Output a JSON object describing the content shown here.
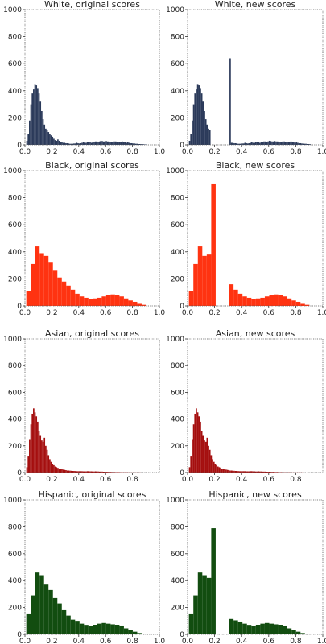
{
  "colors": {
    "White": "#2b3a5a",
    "Black": "#ff3311",
    "Asian": "#a50f0f",
    "Hispanic": "#124d10"
  },
  "chart_data": [
    {
      "type": "bar",
      "title": "White, original scores",
      "group": "White",
      "xlim": [
        0,
        1
      ],
      "ylim": [
        0,
        1000
      ],
      "xticks": [
        "0.0",
        "0.2",
        "0.4",
        "0.6",
        "0.8",
        "1.0"
      ],
      "yticks": [
        "0",
        "200",
        "400",
        "600",
        "800",
        "1000"
      ],
      "bin_width": 0.01,
      "x_start": 0.01,
      "values": [
        30,
        80,
        180,
        300,
        380,
        410,
        450,
        440,
        420,
        380,
        320,
        250,
        190,
        150,
        120,
        110,
        95,
        80,
        70,
        60,
        45,
        35,
        30,
        40,
        30,
        20,
        18,
        15,
        15,
        12,
        12,
        10,
        8,
        8,
        8,
        10,
        10,
        15,
        12,
        10,
        12,
        15,
        18,
        15,
        15,
        20,
        20,
        18,
        15,
        20,
        20,
        25,
        25,
        22,
        25,
        30,
        28,
        25,
        25,
        28,
        25,
        25,
        20,
        22,
        20,
        25,
        25,
        22,
        22,
        20,
        20,
        25,
        20,
        18,
        15,
        18,
        15,
        12,
        12,
        10,
        10,
        8,
        8,
        6,
        6,
        5,
        5,
        4,
        3,
        3
      ]
    },
    {
      "type": "bar",
      "title": "White, new scores",
      "group": "White",
      "xlim": [
        0,
        1
      ],
      "ylim": [
        0,
        1000
      ],
      "xticks": [
        "0.0",
        "0.2",
        "0.4",
        "0.6",
        "0.8",
        "1.0"
      ],
      "yticks": [
        "0",
        "200",
        "400",
        "600",
        "800",
        "1000"
      ],
      "bin_width": 0.01,
      "x_start": 0.01,
      "values": [
        30,
        80,
        180,
        300,
        380,
        410,
        450,
        440,
        420,
        380,
        320,
        250,
        190,
        150,
        120,
        110,
        0,
        0,
        0,
        0,
        0,
        0,
        0,
        0,
        0,
        0,
        0,
        0,
        0,
        0,
        640,
        15,
        15,
        12,
        12,
        10,
        8,
        8,
        8,
        10,
        10,
        15,
        12,
        10,
        12,
        15,
        18,
        15,
        15,
        20,
        20,
        18,
        15,
        20,
        20,
        25,
        25,
        22,
        25,
        30,
        28,
        25,
        25,
        28,
        25,
        25,
        20,
        22,
        20,
        25,
        25,
        22,
        22,
        20,
        20,
        25,
        20,
        18,
        15,
        18,
        15,
        12,
        12,
        10,
        10,
        8,
        8,
        6,
        6,
        5
      ]
    },
    {
      "type": "bar",
      "title": "Black, original scores",
      "group": "Black",
      "xlim": [
        0,
        1
      ],
      "ylim": [
        0,
        1000
      ],
      "xticks": [
        "0.0",
        "0.2",
        "0.4",
        "0.6",
        "0.8",
        "1.0"
      ],
      "yticks": [
        "0",
        "200",
        "400",
        "600",
        "800",
        "1000"
      ],
      "bin_width": 0.033,
      "x_start": 0.01,
      "values": [
        110,
        310,
        440,
        390,
        370,
        320,
        260,
        210,
        180,
        150,
        120,
        90,
        70,
        60,
        50,
        55,
        60,
        70,
        80,
        85,
        80,
        70,
        55,
        40,
        30,
        15,
        8
      ]
    },
    {
      "type": "bar",
      "title": "Black, new scores",
      "group": "Black",
      "xlim": [
        0,
        1
      ],
      "ylim": [
        0,
        1000
      ],
      "xticks": [
        "0.0",
        "0.2",
        "0.4",
        "0.6",
        "0.8",
        "1.0"
      ],
      "yticks": [
        "0",
        "200",
        "400",
        "600",
        "800",
        "1000"
      ],
      "bin_width": 0.033,
      "x_start": 0.01,
      "values": [
        110,
        310,
        440,
        370,
        380,
        905,
        0,
        0,
        0,
        160,
        120,
        90,
        70,
        60,
        50,
        55,
        60,
        70,
        80,
        85,
        80,
        70,
        55,
        40,
        30,
        15,
        8
      ]
    },
    {
      "type": "bar",
      "title": "Asian, original scores",
      "group": "Asian",
      "xlim": [
        0,
        1
      ],
      "ylim": [
        0,
        1000
      ],
      "xticks": [
        "0.0",
        "0.2",
        "0.4",
        "0.6",
        "0.8"
      ],
      "yticks": [
        "0",
        "200",
        "400",
        "600",
        "800",
        "1000"
      ],
      "bin_width": 0.01,
      "x_start": 0.01,
      "values": [
        40,
        120,
        250,
        360,
        440,
        480,
        450,
        420,
        380,
        310,
        280,
        240,
        230,
        260,
        200,
        170,
        130,
        100,
        80,
        65,
        55,
        45,
        40,
        35,
        30,
        28,
        25,
        22,
        20,
        18,
        15,
        15,
        14,
        13,
        12,
        12,
        11,
        10,
        10,
        10,
        10,
        10,
        9,
        9,
        9,
        10,
        10,
        9,
        9,
        8,
        8,
        9,
        8,
        8,
        7,
        7,
        7,
        6,
        6,
        6,
        5,
        5,
        5,
        4,
        4,
        4,
        3,
        3,
        3,
        3,
        2,
        2,
        2,
        2,
        2,
        2,
        1,
        1,
        1,
        1,
        1,
        1,
        1,
        1,
        1
      ]
    },
    {
      "type": "bar",
      "title": "Asian, new scores",
      "group": "Asian",
      "xlim": [
        0,
        1
      ],
      "ylim": [
        0,
        1000
      ],
      "xticks": [
        "0.0",
        "0.2",
        "0.4",
        "0.6",
        "0.8"
      ],
      "yticks": [
        "0",
        "200",
        "400",
        "600",
        "800",
        "1000"
      ],
      "bin_width": 0.01,
      "x_start": 0.01,
      "values": [
        40,
        120,
        250,
        360,
        440,
        480,
        450,
        420,
        380,
        310,
        280,
        240,
        230,
        260,
        200,
        170,
        130,
        100,
        80,
        65,
        55,
        45,
        40,
        35,
        30,
        28,
        25,
        22,
        20,
        18,
        15,
        15,
        14,
        13,
        12,
        12,
        11,
        10,
        10,
        10,
        10,
        10,
        9,
        9,
        9,
        10,
        10,
        9,
        9,
        8,
        8,
        9,
        8,
        8,
        7,
        7,
        7,
        6,
        6,
        6,
        5,
        5,
        5,
        4,
        4,
        4,
        3,
        3,
        3,
        3,
        2,
        2,
        2,
        2,
        2,
        2,
        1,
        1,
        1,
        1,
        1,
        1,
        1,
        1,
        1
      ]
    },
    {
      "type": "bar",
      "title": "Hispanic, original scores",
      "group": "Hispanic",
      "xlim": [
        0,
        1
      ],
      "ylim": [
        0,
        1000
      ],
      "xticks": [
        "0.0",
        "0.2",
        "0.4",
        "0.6",
        "0.8",
        "1.0"
      ],
      "yticks": [
        "0",
        "200",
        "400",
        "600",
        "800",
        "1000"
      ],
      "bin_width": 0.033,
      "x_start": 0.01,
      "values": [
        150,
        290,
        460,
        440,
        370,
        330,
        270,
        230,
        180,
        140,
        110,
        95,
        80,
        65,
        60,
        70,
        80,
        85,
        80,
        75,
        70,
        60,
        45,
        30,
        20,
        10
      ]
    },
    {
      "type": "bar",
      "title": "Hispanic, new scores",
      "group": "Hispanic",
      "xlim": [
        0,
        1
      ],
      "ylim": [
        0,
        1000
      ],
      "xticks": [
        "0.0",
        "0.2",
        "0.4",
        "0.6",
        "0.8",
        "1.0"
      ],
      "yticks": [
        "0",
        "200",
        "400",
        "600",
        "800",
        "1000"
      ],
      "bin_width": 0.033,
      "x_start": 0.01,
      "values": [
        150,
        290,
        460,
        440,
        420,
        790,
        0,
        0,
        0,
        115,
        105,
        90,
        80,
        65,
        60,
        70,
        80,
        85,
        80,
        75,
        70,
        60,
        45,
        30,
        20,
        10
      ]
    }
  ]
}
